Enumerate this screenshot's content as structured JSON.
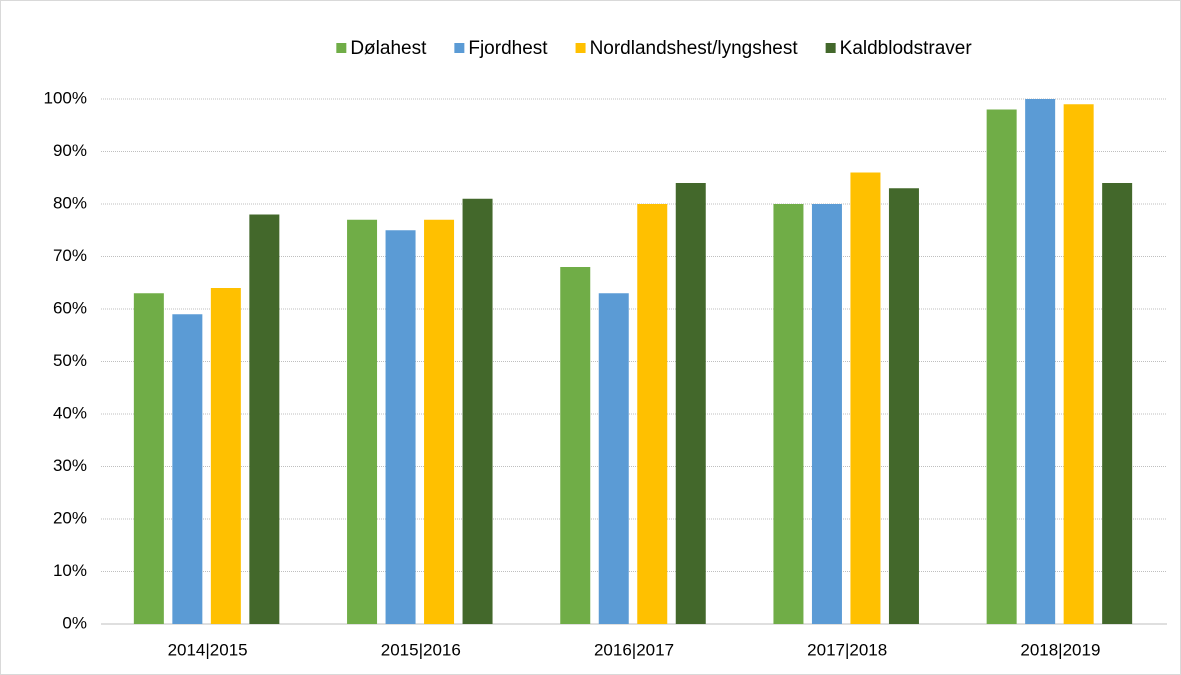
{
  "chart_data": {
    "type": "bar",
    "categories": [
      "2014|2015",
      "2015|2016",
      "2016|2017",
      "2017|2018",
      "2018|2019"
    ],
    "series": [
      {
        "name": "Dølahest",
        "color": "#70ad47",
        "values": [
          63,
          77,
          68,
          80,
          98
        ]
      },
      {
        "name": "Fjordhest",
        "color": "#5b9bd5",
        "values": [
          59,
          75,
          63,
          80,
          100
        ]
      },
      {
        "name": "Nordlandshest/lyngshest",
        "color": "#ffc000",
        "values": [
          64,
          77,
          80,
          86,
          99
        ]
      },
      {
        "name": "Kaldblodstraver",
        "color": "#43682b",
        "values": [
          78,
          81,
          84,
          83,
          84
        ]
      }
    ],
    "ylim": [
      0,
      100
    ],
    "yticks": [
      {
        "value": 0,
        "label": "0%"
      },
      {
        "value": 10,
        "label": "10%"
      },
      {
        "value": 20,
        "label": "20%"
      },
      {
        "value": 30,
        "label": "30%"
      },
      {
        "value": 40,
        "label": "40%"
      },
      {
        "value": 50,
        "label": "50%"
      },
      {
        "value": 60,
        "label": "60%"
      },
      {
        "value": 70,
        "label": "70%"
      },
      {
        "value": 80,
        "label": "80%"
      },
      {
        "value": 90,
        "label": "90%"
      },
      {
        "value": 100,
        "label": "100%"
      }
    ],
    "grid": true,
    "legend": "top"
  }
}
